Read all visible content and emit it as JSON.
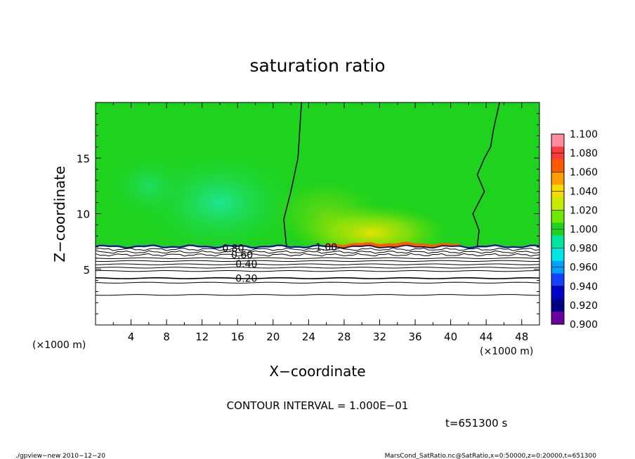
{
  "chart_data": {
    "type": "heatmap",
    "title": "saturation ratio",
    "xlabel": "X−coordinate",
    "ylabel": "Z−coordinate",
    "x_unit": "(×1000 m)",
    "y_unit": "(×1000 m)",
    "xlim": [
      0,
      50
    ],
    "ylim": [
      0,
      20
    ],
    "x_ticks": [
      4,
      8,
      12,
      16,
      20,
      24,
      28,
      32,
      36,
      40,
      44,
      48
    ],
    "y_ticks": [
      5,
      10,
      15
    ],
    "contour_labels": [
      {
        "text": "1.00",
        "x": 26,
        "z": 7.0
      },
      {
        "text": "0.80",
        "x": 15.5,
        "z": 6.9
      },
      {
        "text": "0.60",
        "x": 16.5,
        "z": 6.3
      },
      {
        "text": "0.40",
        "x": 17,
        "z": 5.5
      },
      {
        "text": "0.20",
        "x": 17,
        "z": 4.2
      }
    ],
    "contour_interval": "CONTOUR INTERVAL = 1.000E−01",
    "time_label": "t=651300 s",
    "colorbar": {
      "labels": [
        "1.100",
        "1.080",
        "1.060",
        "1.040",
        "1.020",
        "1.000",
        "0.980",
        "0.960",
        "0.940",
        "0.920",
        "0.900"
      ],
      "colors": [
        "#ff8c9e",
        "#ff3a3a",
        "#ff5a00",
        "#ff9c00",
        "#f4dc00",
        "#c8ec00",
        "#6ee800",
        "#1ed21e",
        "#00e6a0",
        "#00e6e6",
        "#00a0ff",
        "#1440ff",
        "#0000c8",
        "#000088",
        "#6a00a0"
      ]
    }
  },
  "footer": {
    "left": "./gpview−new   2010−12−20",
    "right": "MarsCond_SatRatio.nc@SatRatio,x=0:50000,z=0:20000,t=651300"
  }
}
